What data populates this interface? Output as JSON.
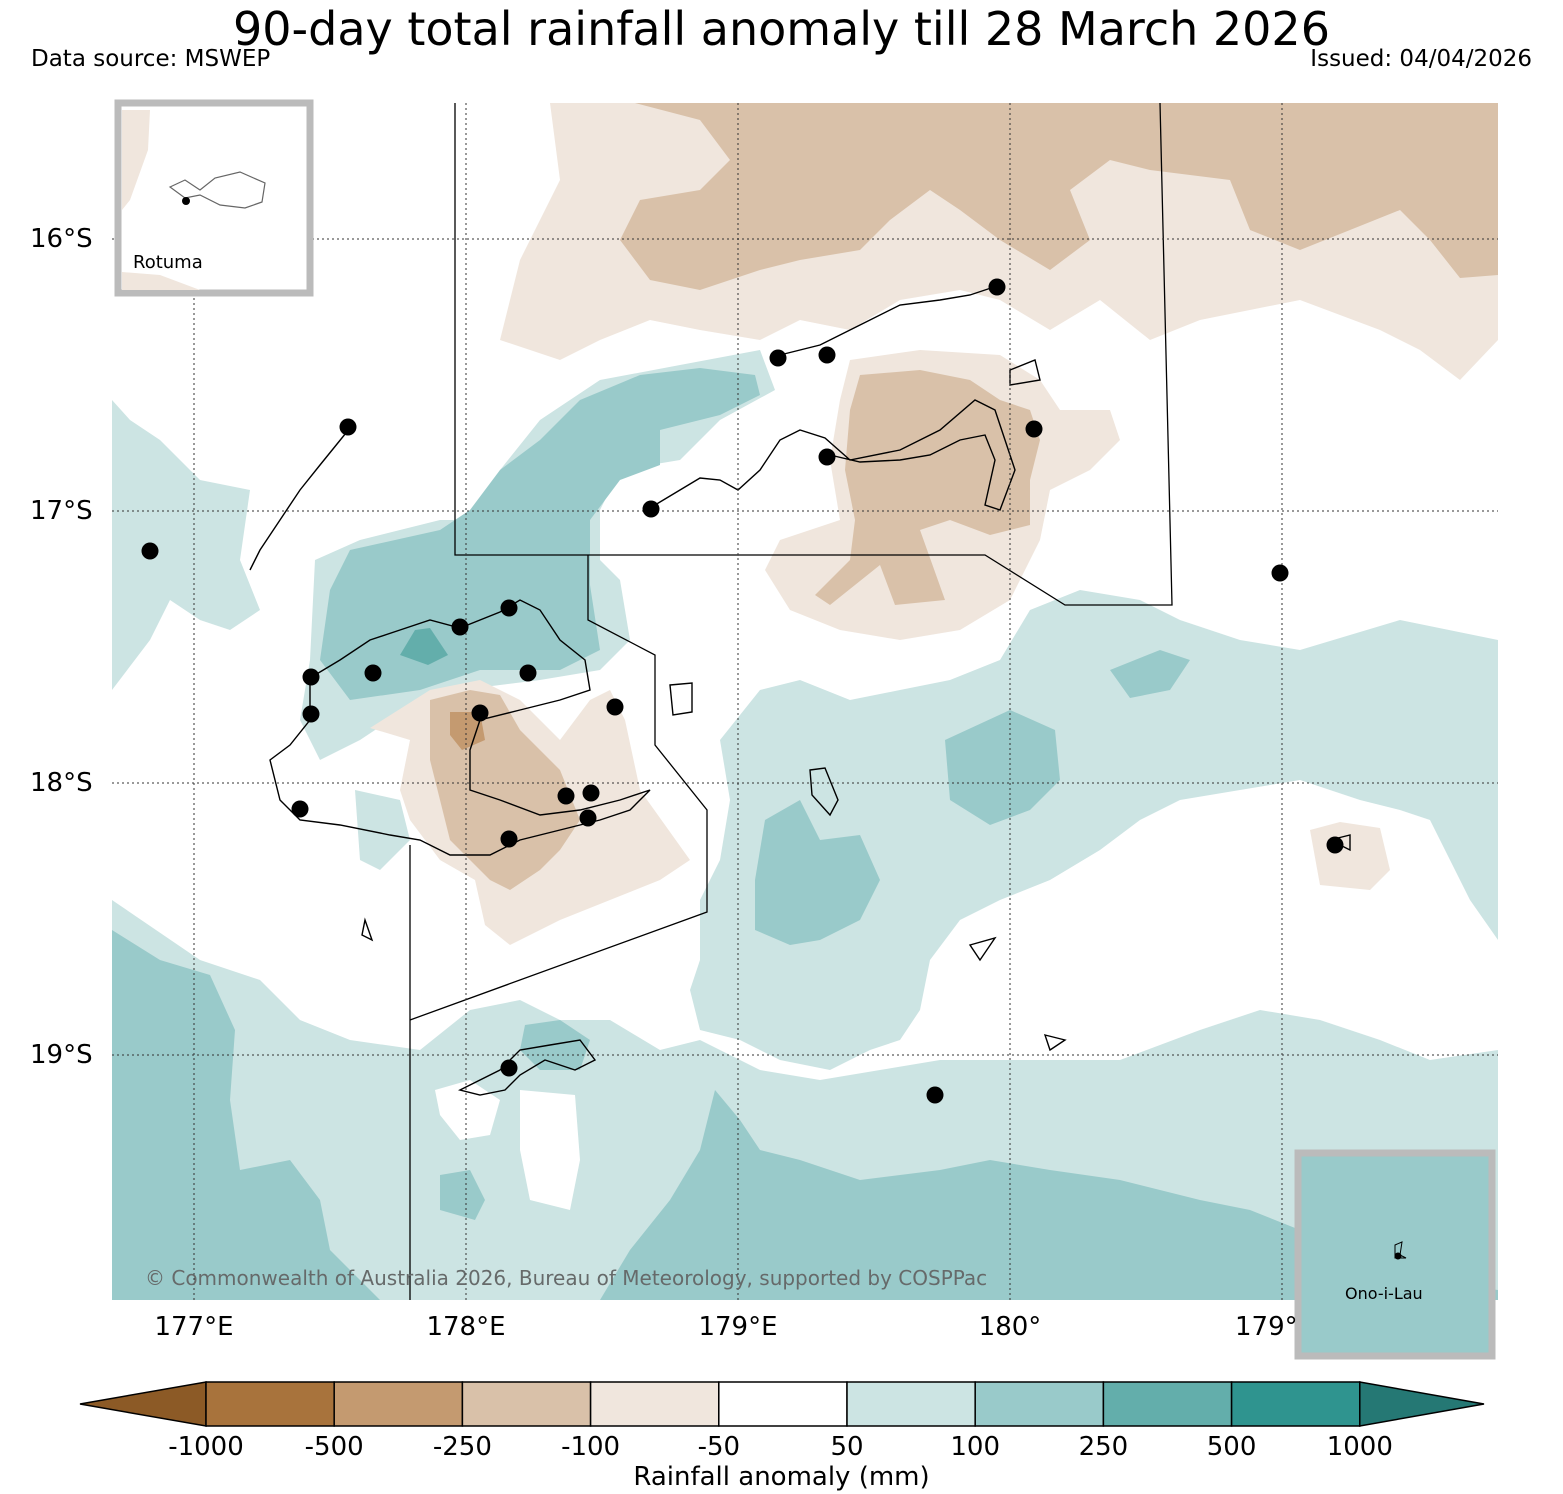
{
  "header": {
    "title": "90-day total rainfall anomaly till 28 March 2026",
    "data_source": "Data source: MSWEP",
    "issued": "Issued: 04/04/2026"
  },
  "map": {
    "lat_labels": [
      "16°S",
      "17°S",
      "18°S",
      "19°S"
    ],
    "lon_labels": [
      "177°E",
      "178°E",
      "179°E",
      "180°",
      "179°"
    ],
    "copyright": "© Commonwealth of Australia 2026, Bureau of Meteorology, supported by COSPPac",
    "insets": {
      "rotuma": "Rotuma",
      "ono_i_lau": "Ono-i-Lau"
    }
  },
  "colorbar": {
    "title": "Rainfall anomaly (mm)",
    "tick_labels": [
      "-1000",
      "-500",
      "-250",
      "-100",
      "-50",
      "50",
      "100",
      "250",
      "500",
      "1000"
    ],
    "bins": [
      {
        "range": "< -1000",
        "color": "#8c5a26"
      },
      {
        "range": "-1000 to -500",
        "color": "#a8733c"
      },
      {
        "range": "-500 to -250",
        "color": "#c49a70"
      },
      {
        "range": "-250 to -100",
        "color": "#d9c1a9"
      },
      {
        "range": "-100 to -50",
        "color": "#f0e6dd"
      },
      {
        "range": "-50 to 50",
        "color": "#ffffff"
      },
      {
        "range": "50 to 100",
        "color": "#cce4e3"
      },
      {
        "range": "100 to 250",
        "color": "#99caca"
      },
      {
        "range": "250 to 500",
        "color": "#63aeab"
      },
      {
        "range": "500 to 1000",
        "color": "#2f948f"
      },
      {
        "range": "> 1000",
        "color": "#257874"
      }
    ]
  }
}
